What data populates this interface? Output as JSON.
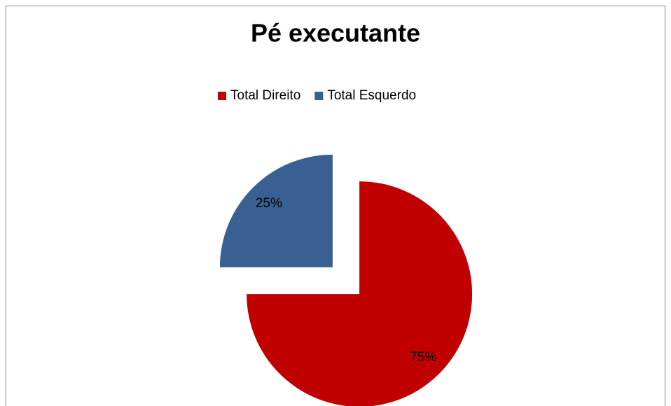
{
  "chart_data": {
    "type": "pie",
    "title": "Pé executante",
    "categories": [
      "Total Direito",
      "Total Esquerdo"
    ],
    "values": [
      75,
      25
    ],
    "value_labels": [
      "75%",
      "25%"
    ],
    "colors": [
      "#c00000",
      "#386092"
    ],
    "legend": "top",
    "exploded": true
  }
}
